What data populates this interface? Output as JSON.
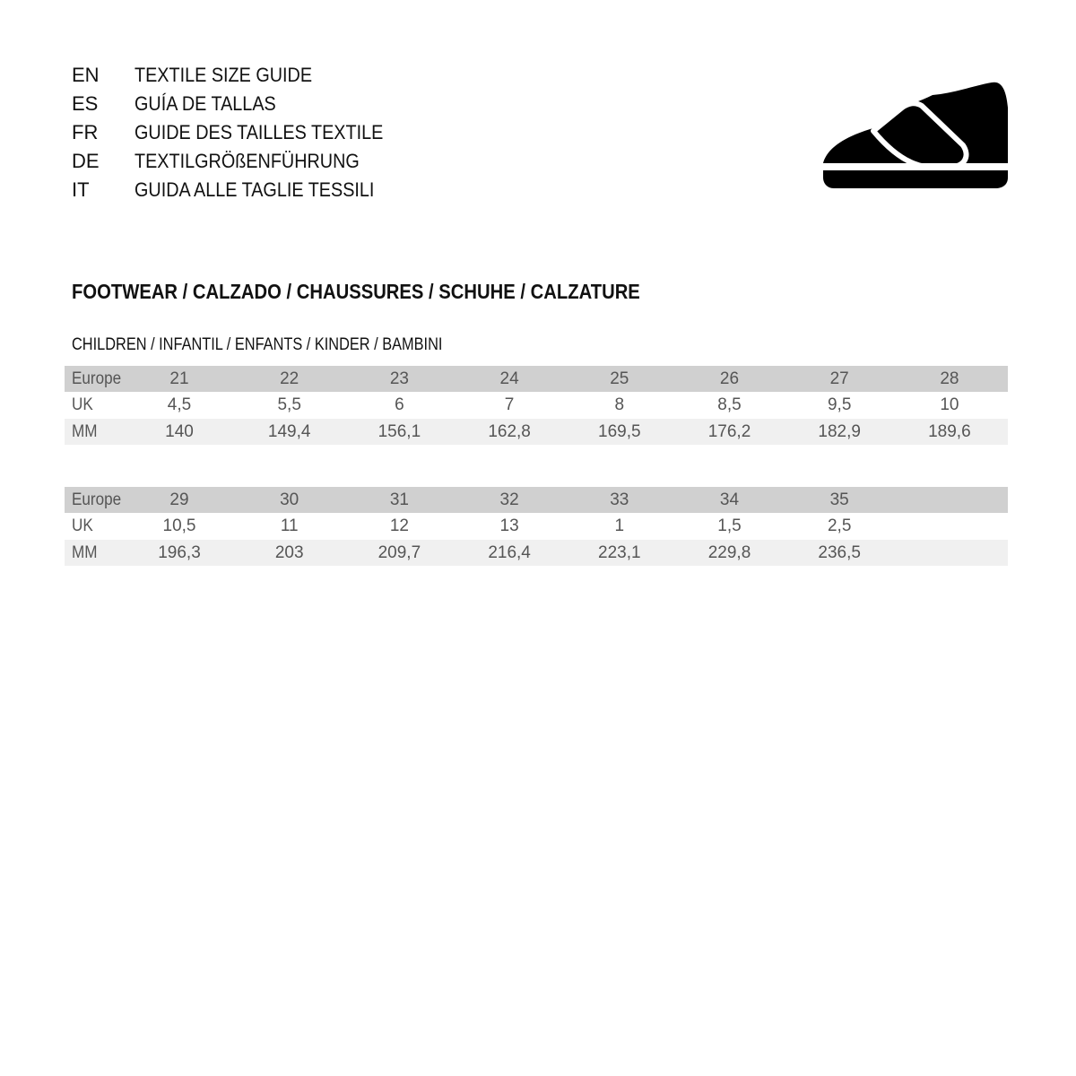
{
  "header": {
    "languages": [
      {
        "code": "EN",
        "title": "TEXTILE SIZE GUIDE"
      },
      {
        "code": "ES",
        "title": "GUÍA DE TALLAS"
      },
      {
        "code": "FR",
        "title": "GUIDE DES TAILLES TEXTILE"
      },
      {
        "code": "DE",
        "title": "TEXTILGRÖßENFÜHRUNG"
      },
      {
        "code": "IT",
        "title": "GUIDA ALLE TAGLIE TESSILI"
      }
    ],
    "icon": "velcro-shoe-icon"
  },
  "section_title": "FOOTWEAR / CALZADO / CHAUSSURES / SCHUHE / CALZATURE",
  "subsection_title": "CHILDREN / INFANTIL / ENFANTS / KINDER / BAMBINI",
  "colors": {
    "header_row": "#d0d0d0",
    "alt_row": "#f0f0f0",
    "text": "#555555"
  },
  "tables": [
    {
      "rows": [
        {
          "label": "Europe",
          "values": [
            "21",
            "22",
            "23",
            "24",
            "25",
            "26",
            "27",
            "28"
          ]
        },
        {
          "label": "UK",
          "values": [
            "4,5",
            "5,5",
            "6",
            "7",
            "8",
            "8,5",
            "9,5",
            "10"
          ]
        },
        {
          "label": "MM",
          "values": [
            "140",
            "149,4",
            "156,1",
            "162,8",
            "169,5",
            "176,2",
            "182,9",
            "189,6"
          ]
        }
      ]
    },
    {
      "rows": [
        {
          "label": "Europe",
          "values": [
            "29",
            "30",
            "31",
            "32",
            "33",
            "34",
            "35"
          ]
        },
        {
          "label": "UK",
          "values": [
            "10,5",
            "11",
            "12",
            "13",
            "1",
            "1,5",
            "2,5"
          ]
        },
        {
          "label": "MM",
          "values": [
            "196,3",
            "203",
            "209,7",
            "216,4",
            "223,1",
            "229,8",
            "236,5"
          ]
        }
      ]
    }
  ]
}
